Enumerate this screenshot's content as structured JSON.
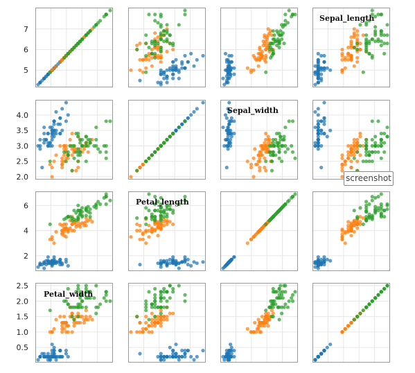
{
  "chart_data": {
    "type": "scatter",
    "title": "",
    "variables": [
      "Sepal_length",
      "Sepal_width",
      "Petal_length",
      "Petal_width"
    ],
    "diagonal_labels": [
      "Sepal_length",
      "Sepal_width",
      "Petal_length",
      "Petal_width"
    ],
    "row_ticks": [
      [
        "5",
        "6",
        "7"
      ],
      [
        "2.0",
        "2.5",
        "3.0",
        "3.5",
        "4.0"
      ],
      [
        "2",
        "4",
        "6"
      ],
      [
        "0.5",
        "1.0",
        "1.5",
        "2.0",
        "2.5"
      ]
    ],
    "row_tick_values": [
      [
        5,
        6,
        7
      ],
      [
        2.0,
        2.5,
        3.0,
        3.5,
        4.0
      ],
      [
        2,
        4,
        6
      ],
      [
        0.5,
        1.0,
        1.5,
        2.0,
        2.5
      ]
    ],
    "ranges": [
      [
        4.3,
        7.9
      ],
      [
        2.0,
        4.4
      ],
      [
        1.0,
        6.9
      ],
      [
        0.1,
        2.5
      ]
    ],
    "grid": true,
    "legend": "none",
    "series": [
      {
        "color": "#1f77b4",
        "points": [
          [
            5.1,
            3.5,
            1.4,
            0.2
          ],
          [
            4.9,
            3.0,
            1.4,
            0.2
          ],
          [
            4.7,
            3.2,
            1.3,
            0.2
          ],
          [
            4.6,
            3.1,
            1.5,
            0.2
          ],
          [
            5.0,
            3.6,
            1.4,
            0.2
          ],
          [
            5.4,
            3.9,
            1.7,
            0.4
          ],
          [
            4.6,
            3.4,
            1.4,
            0.3
          ],
          [
            5.0,
            3.4,
            1.5,
            0.2
          ],
          [
            4.4,
            2.9,
            1.4,
            0.2
          ],
          [
            4.9,
            3.1,
            1.5,
            0.1
          ],
          [
            5.4,
            3.7,
            1.5,
            0.2
          ],
          [
            4.8,
            3.4,
            1.6,
            0.2
          ],
          [
            4.8,
            3.0,
            1.4,
            0.1
          ],
          [
            4.3,
            3.0,
            1.1,
            0.1
          ],
          [
            5.8,
            4.0,
            1.2,
            0.2
          ],
          [
            5.7,
            4.4,
            1.5,
            0.4
          ],
          [
            5.4,
            3.9,
            1.3,
            0.4
          ],
          [
            5.1,
            3.5,
            1.4,
            0.3
          ],
          [
            5.7,
            3.8,
            1.7,
            0.3
          ],
          [
            5.1,
            3.8,
            1.5,
            0.3
          ],
          [
            5.4,
            3.4,
            1.7,
            0.2
          ],
          [
            5.1,
            3.7,
            1.5,
            0.4
          ],
          [
            4.6,
            3.6,
            1.0,
            0.2
          ],
          [
            5.1,
            3.3,
            1.7,
            0.5
          ],
          [
            4.8,
            3.4,
            1.9,
            0.2
          ],
          [
            5.0,
            3.0,
            1.6,
            0.2
          ],
          [
            5.0,
            3.4,
            1.6,
            0.4
          ],
          [
            5.2,
            3.5,
            1.5,
            0.2
          ],
          [
            5.2,
            3.4,
            1.4,
            0.2
          ],
          [
            4.7,
            3.2,
            1.6,
            0.2
          ],
          [
            4.8,
            3.1,
            1.6,
            0.2
          ],
          [
            5.4,
            3.4,
            1.5,
            0.4
          ],
          [
            5.2,
            4.1,
            1.5,
            0.1
          ],
          [
            5.5,
            4.2,
            1.4,
            0.2
          ],
          [
            4.9,
            3.1,
            1.5,
            0.2
          ],
          [
            5.0,
            3.2,
            1.2,
            0.2
          ],
          [
            5.5,
            3.5,
            1.3,
            0.2
          ],
          [
            4.9,
            3.6,
            1.4,
            0.1
          ],
          [
            4.4,
            3.0,
            1.3,
            0.2
          ],
          [
            5.1,
            3.4,
            1.5,
            0.2
          ],
          [
            5.0,
            3.5,
            1.3,
            0.3
          ],
          [
            4.5,
            2.3,
            1.3,
            0.3
          ],
          [
            4.4,
            3.2,
            1.3,
            0.2
          ],
          [
            5.0,
            3.5,
            1.6,
            0.6
          ],
          [
            5.1,
            3.8,
            1.9,
            0.4
          ],
          [
            4.8,
            3.0,
            1.4,
            0.3
          ],
          [
            5.1,
            3.8,
            1.6,
            0.2
          ],
          [
            4.6,
            3.2,
            1.4,
            0.2
          ],
          [
            5.3,
            3.7,
            1.5,
            0.2
          ],
          [
            5.0,
            3.3,
            1.4,
            0.2
          ]
        ]
      },
      {
        "color": "#ff7f0e",
        "points": [
          [
            7.0,
            3.2,
            4.7,
            1.4
          ],
          [
            6.4,
            3.2,
            4.5,
            1.5
          ],
          [
            6.9,
            3.1,
            4.9,
            1.5
          ],
          [
            5.5,
            2.3,
            4.0,
            1.3
          ],
          [
            6.5,
            2.8,
            4.6,
            1.5
          ],
          [
            5.7,
            2.8,
            4.5,
            1.3
          ],
          [
            6.3,
            3.3,
            4.7,
            1.6
          ],
          [
            4.9,
            2.4,
            3.3,
            1.0
          ],
          [
            6.6,
            2.9,
            4.6,
            1.3
          ],
          [
            5.2,
            2.7,
            3.9,
            1.4
          ],
          [
            5.0,
            2.0,
            3.5,
            1.0
          ],
          [
            5.9,
            3.0,
            4.2,
            1.5
          ],
          [
            6.0,
            2.2,
            4.0,
            1.0
          ],
          [
            6.1,
            2.9,
            4.7,
            1.4
          ],
          [
            5.6,
            2.9,
            3.6,
            1.3
          ],
          [
            6.7,
            3.1,
            4.4,
            1.4
          ],
          [
            5.6,
            3.0,
            4.5,
            1.5
          ],
          [
            5.8,
            2.7,
            4.1,
            1.0
          ],
          [
            6.2,
            2.2,
            4.5,
            1.5
          ],
          [
            5.6,
            2.5,
            3.9,
            1.1
          ],
          [
            5.9,
            3.2,
            4.8,
            1.8
          ],
          [
            6.1,
            2.8,
            4.0,
            1.3
          ],
          [
            6.3,
            2.5,
            4.9,
            1.5
          ],
          [
            6.1,
            2.8,
            4.7,
            1.2
          ],
          [
            6.4,
            2.9,
            4.3,
            1.3
          ],
          [
            6.6,
            3.0,
            4.4,
            1.4
          ],
          [
            6.8,
            2.8,
            4.8,
            1.4
          ],
          [
            6.7,
            3.0,
            5.0,
            1.7
          ],
          [
            6.0,
            2.9,
            4.5,
            1.5
          ],
          [
            5.7,
            2.6,
            3.5,
            1.0
          ],
          [
            5.5,
            2.4,
            3.8,
            1.1
          ],
          [
            5.5,
            2.4,
            3.7,
            1.0
          ],
          [
            5.8,
            2.7,
            3.9,
            1.2
          ],
          [
            6.0,
            2.7,
            5.1,
            1.6
          ],
          [
            5.4,
            3.0,
            4.5,
            1.5
          ],
          [
            6.0,
            3.4,
            4.5,
            1.6
          ],
          [
            6.7,
            3.1,
            4.7,
            1.5
          ],
          [
            6.3,
            2.3,
            4.4,
            1.3
          ],
          [
            5.6,
            3.0,
            4.1,
            1.3
          ],
          [
            5.5,
            2.5,
            4.0,
            1.3
          ],
          [
            5.5,
            2.6,
            4.4,
            1.2
          ],
          [
            6.1,
            3.0,
            4.6,
            1.4
          ],
          [
            5.8,
            2.6,
            4.0,
            1.2
          ],
          [
            5.0,
            2.3,
            3.3,
            1.0
          ],
          [
            5.6,
            2.7,
            4.2,
            1.3
          ],
          [
            5.7,
            3.0,
            4.2,
            1.2
          ],
          [
            5.7,
            2.9,
            4.2,
            1.3
          ],
          [
            6.2,
            2.9,
            4.3,
            1.3
          ],
          [
            5.1,
            2.5,
            3.0,
            1.1
          ],
          [
            5.7,
            2.8,
            4.1,
            1.3
          ]
        ]
      },
      {
        "color": "#2ca02c",
        "points": [
          [
            6.3,
            3.3,
            6.0,
            2.5
          ],
          [
            5.8,
            2.7,
            5.1,
            1.9
          ],
          [
            7.1,
            3.0,
            5.9,
            2.1
          ],
          [
            6.3,
            2.9,
            5.6,
            1.8
          ],
          [
            6.5,
            3.0,
            5.8,
            2.2
          ],
          [
            7.6,
            3.0,
            6.6,
            2.1
          ],
          [
            4.9,
            2.5,
            4.5,
            1.7
          ],
          [
            7.3,
            2.9,
            6.3,
            1.8
          ],
          [
            6.7,
            2.5,
            5.8,
            1.8
          ],
          [
            7.2,
            3.6,
            6.1,
            2.5
          ],
          [
            6.5,
            3.2,
            5.1,
            2.0
          ],
          [
            6.4,
            2.7,
            5.3,
            1.9
          ],
          [
            6.8,
            3.0,
            5.5,
            2.1
          ],
          [
            5.7,
            2.5,
            5.0,
            2.0
          ],
          [
            5.8,
            2.8,
            5.1,
            2.4
          ],
          [
            6.4,
            3.2,
            5.3,
            2.3
          ],
          [
            6.5,
            3.0,
            5.5,
            1.8
          ],
          [
            7.7,
            3.8,
            6.7,
            2.2
          ],
          [
            7.7,
            2.6,
            6.9,
            2.3
          ],
          [
            6.0,
            2.2,
            5.0,
            1.5
          ],
          [
            6.9,
            3.2,
            5.7,
            2.3
          ],
          [
            5.6,
            2.8,
            4.9,
            2.0
          ],
          [
            7.7,
            2.8,
            6.7,
            2.0
          ],
          [
            6.3,
            2.7,
            4.9,
            1.8
          ],
          [
            6.7,
            3.3,
            5.7,
            2.1
          ],
          [
            7.2,
            3.2,
            6.0,
            1.8
          ],
          [
            6.2,
            2.8,
            4.8,
            1.8
          ],
          [
            6.1,
            3.0,
            4.9,
            1.8
          ],
          [
            6.4,
            2.8,
            5.6,
            2.1
          ],
          [
            7.2,
            3.0,
            5.8,
            1.6
          ],
          [
            7.4,
            2.8,
            6.1,
            1.9
          ],
          [
            7.9,
            3.8,
            6.4,
            2.0
          ],
          [
            6.4,
            2.8,
            5.6,
            2.2
          ],
          [
            6.3,
            2.8,
            5.1,
            1.5
          ],
          [
            6.1,
            2.6,
            5.6,
            1.4
          ],
          [
            7.7,
            3.0,
            6.1,
            2.3
          ],
          [
            6.3,
            3.4,
            5.6,
            2.4
          ],
          [
            6.4,
            3.1,
            5.5,
            1.8
          ],
          [
            6.0,
            3.0,
            4.8,
            1.8
          ],
          [
            6.9,
            3.1,
            5.4,
            2.1
          ],
          [
            6.7,
            3.1,
            5.6,
            2.4
          ],
          [
            6.9,
            3.1,
            5.1,
            2.3
          ],
          [
            5.8,
            2.7,
            5.1,
            1.9
          ],
          [
            6.8,
            3.2,
            5.9,
            2.3
          ],
          [
            6.7,
            3.3,
            5.7,
            2.5
          ],
          [
            6.7,
            3.0,
            5.2,
            2.3
          ],
          [
            6.3,
            2.5,
            5.0,
            1.9
          ],
          [
            6.5,
            3.0,
            5.2,
            2.0
          ],
          [
            6.2,
            3.4,
            5.4,
            2.3
          ],
          [
            5.9,
            3.0,
            5.1,
            1.8
          ]
        ]
      }
    ]
  },
  "toolbar": {
    "screenshot_label": "screenshot"
  }
}
